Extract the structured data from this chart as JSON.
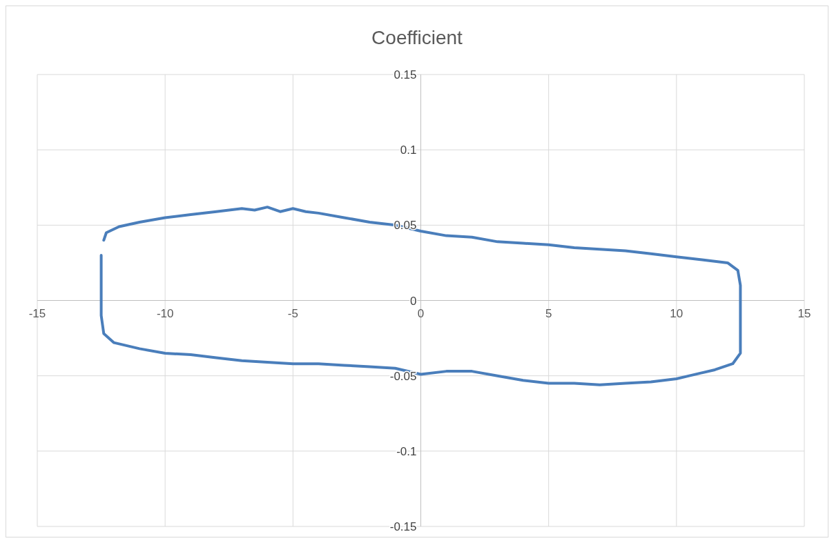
{
  "chart_data": {
    "type": "line",
    "title": "Coefficient",
    "xlim": [
      -15,
      15
    ],
    "xticks": [
      -15,
      -10,
      -5,
      0,
      5,
      10,
      15
    ],
    "ylim": [
      -0.15,
      0.15
    ],
    "yticks": [
      -0.15,
      -0.1,
      -0.05,
      0,
      0.05,
      0.1,
      0.15
    ],
    "grid": true,
    "marker": "none",
    "line_style": "solid",
    "series": [
      {
        "color": "#4a7ebb",
        "x": [
          -12.4,
          -12.3,
          -11.8,
          -11,
          -10,
          -9,
          -8,
          -7.5,
          -7,
          -6.5,
          -6,
          -5.5,
          -5,
          -4.5,
          -4,
          -3,
          -2,
          -1,
          0,
          1,
          2,
          3,
          4,
          5,
          6,
          7,
          8,
          9,
          10,
          11,
          12,
          12.4,
          12.5,
          12.5,
          12.5,
          12.5,
          12.2,
          11.5,
          10.5,
          10,
          9,
          8,
          7,
          6,
          5,
          4,
          3,
          2,
          1,
          0,
          -1,
          -2,
          -3,
          -4,
          -5,
          -6,
          -7,
          -8,
          -9,
          -10,
          -11,
          -12,
          -12.4,
          -12.5,
          -12.5,
          -12.5
        ],
        "values": [
          0.04,
          0.045,
          0.049,
          0.052,
          0.055,
          0.057,
          0.059,
          0.06,
          0.061,
          0.06,
          0.062,
          0.059,
          0.061,
          0.059,
          0.058,
          0.055,
          0.052,
          0.05,
          0.046,
          0.043,
          0.042,
          0.039,
          0.038,
          0.037,
          0.035,
          0.034,
          0.033,
          0.031,
          0.029,
          0.027,
          0.025,
          0.02,
          0.01,
          0,
          -0.02,
          -0.035,
          -0.042,
          -0.046,
          -0.05,
          -0.052,
          -0.054,
          -0.055,
          -0.056,
          -0.055,
          -0.055,
          -0.053,
          -0.05,
          -0.047,
          -0.047,
          -0.049,
          -0.045,
          -0.044,
          -0.043,
          -0.042,
          -0.042,
          -0.041,
          -0.04,
          -0.038,
          -0.036,
          -0.035,
          -0.032,
          -0.028,
          -0.022,
          -0.01,
          0.01,
          0.03
        ]
      }
    ]
  }
}
